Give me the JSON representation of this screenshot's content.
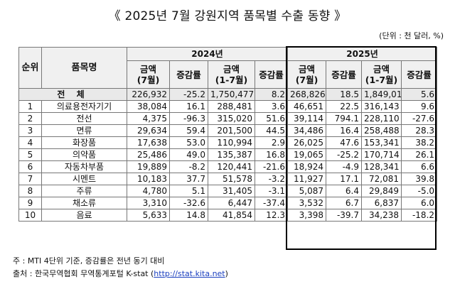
{
  "title": "《 2025년 7월 강원지역 품목별 수출 동향 》",
  "unit": "(단위 : 천 달러, %)",
  "headers": {
    "rank": "순위",
    "item": "품목명",
    "y2024": "2024년",
    "y2025": "2025년",
    "amount_month": "금액\n(7월)",
    "change": "증감률",
    "amount_cum": "금액\n(1-7월)"
  },
  "total": {
    "label": "전 체",
    "values": [
      "226,932",
      "-25.2",
      "1,750,477",
      "8.2",
      "268,826",
      "18.5",
      "1,849,015",
      "5.6"
    ]
  },
  "rows": [
    {
      "rank": "1",
      "item": "의료용전자기기",
      "values": [
        "38,084",
        "16.1",
        "288,481",
        "3.6",
        "46,651",
        "22.5",
        "316,143",
        "9.6"
      ]
    },
    {
      "rank": "2",
      "item": "전선",
      "values": [
        "4,375",
        "-96.3",
        "315,020",
        "51.6",
        "39,114",
        "794.1",
        "228,110",
        "-27.6"
      ]
    },
    {
      "rank": "3",
      "item": "면류",
      "values": [
        "29,634",
        "59.4",
        "201,500",
        "44.5",
        "34,486",
        "16.4",
        "258,488",
        "28.3"
      ]
    },
    {
      "rank": "4",
      "item": "화장품",
      "values": [
        "17,638",
        "53.0",
        "110,994",
        "2.9",
        "26,025",
        "47.6",
        "153,341",
        "38.2"
      ]
    },
    {
      "rank": "5",
      "item": "의약품",
      "values": [
        "25,486",
        "49.0",
        "135,387",
        "16.8",
        "19,065",
        "-25.2",
        "170,714",
        "26.1"
      ]
    },
    {
      "rank": "6",
      "item": "자동차부품",
      "values": [
        "19,889",
        "-8.2",
        "120,441",
        "-21.6",
        "18,924",
        "-4.9",
        "128,341",
        "6.6"
      ]
    },
    {
      "rank": "7",
      "item": "시멘트",
      "values": [
        "10,183",
        "37.7",
        "51,578",
        "-3.2",
        "11,927",
        "17.1",
        "72,081",
        "39.8"
      ]
    },
    {
      "rank": "8",
      "item": "주류",
      "values": [
        "4,780",
        "5.1",
        "31,405",
        "-3.1",
        "5,087",
        "6.4",
        "29,849",
        "-5.0"
      ]
    },
    {
      "rank": "9",
      "item": "채소류",
      "values": [
        "3,310",
        "-32.6",
        "6,447",
        "-37.4",
        "3,532",
        "6.7",
        "6,837",
        "6.0"
      ]
    },
    {
      "rank": "10",
      "item": "음료",
      "values": [
        "5,633",
        "14.8",
        "41,854",
        "12.3",
        "3,398",
        "-39.7",
        "34,238",
        "-18.2"
      ]
    }
  ],
  "notes": {
    "note1": "주 : MTI 4단위 기준, 증감률은 전년 동기 대비",
    "note2_prefix": "출처 : 한국무역협회 무역통계포털 K-stat (",
    "note2_link": "http://stat.kita.net",
    "note2_suffix": ")"
  }
}
